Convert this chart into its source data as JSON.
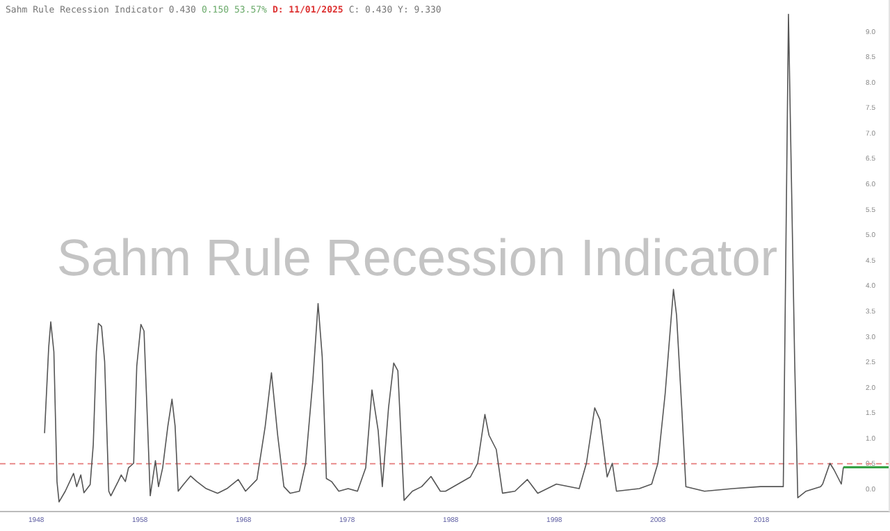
{
  "chart_data": {
    "type": "line",
    "title": "Sahm Rule Recession Indicator 0.430",
    "subtitle": "Sahm Rule Recession Indicator",
    "annotations": [
      "0.150 53.57%",
      "D: 11/01/2025",
      "C: 0.430 Y: 9.330"
    ],
    "x": [
      1948.8,
      1949.2,
      1949.4,
      1949.7,
      1950.0,
      1950.2,
      1950.8,
      1951.6,
      1951.9,
      1952.3,
      1952.6,
      1953.2,
      1953.5,
      1953.8,
      1954.0,
      1954.3,
      1954.6,
      1955.0,
      1955.2,
      1955.9,
      1956.2,
      1956.6,
      1956.9,
      1957.4,
      1957.7,
      1958.1,
      1958.4,
      1958.7,
      1959.0,
      1959.5,
      1959.8,
      1960.2,
      1960.7,
      1961.1,
      1961.4,
      1961.7,
      1962.2,
      1962.9,
      1963.5,
      1964.4,
      1965.5,
      1966.4,
      1967.5,
      1968.2,
      1969.3,
      1970.1,
      1970.7,
      1971.3,
      1971.9,
      1972.5,
      1973.4,
      1974.0,
      1974.7,
      1975.2,
      1975.6,
      1976.0,
      1976.5,
      1977.2,
      1978.1,
      1979.0,
      1979.8,
      1980.4,
      1981.0,
      1981.4,
      1982.0,
      1982.5,
      1982.9,
      1983.5,
      1984.3,
      1985.2,
      1986.1,
      1987.0,
      1987.5,
      1989.9,
      1990.6,
      1991.3,
      1991.7,
      1992.4,
      1993.0,
      1994.2,
      1995.4,
      1996.4,
      1998.2,
      2000.4,
      2001.1,
      2001.9,
      2002.4,
      2003.1,
      2003.6,
      2004.0,
      2006.2,
      2007.4,
      2008.0,
      2008.7,
      2009.5,
      2009.8,
      2010.3,
      2010.7,
      2012.5,
      2015.2,
      2017.9,
      2020.1,
      2020.6,
      2021.2,
      2021.5,
      2022.3,
      2023.7,
      2023.9,
      2024.6,
      2025.0,
      2025.7,
      2025.9
    ],
    "series": [
      {
        "color": "#555555",
        "values": [
          1.1,
          2.79,
          3.29,
          2.7,
          0.15,
          -0.25,
          -0.04,
          0.31,
          0.05,
          0.28,
          -0.07,
          0.09,
          0.87,
          2.7,
          3.26,
          3.2,
          2.51,
          -0.04,
          -0.13,
          0.15,
          0.28,
          0.15,
          0.42,
          0.51,
          2.42,
          3.24,
          3.11,
          1.51,
          -0.13,
          0.56,
          0.05,
          0.42,
          1.24,
          1.77,
          1.24,
          -0.04,
          0.09,
          0.26,
          0.15,
          0.01,
          -0.08,
          0.01,
          0.19,
          -0.04,
          0.19,
          1.24,
          2.29,
          1.06,
          0.05,
          -0.08,
          -0.04,
          0.51,
          2.15,
          3.65,
          2.6,
          0.21,
          0.15,
          -0.04,
          0.01,
          -0.04,
          0.42,
          1.95,
          1.15,
          0.05,
          1.6,
          2.48,
          2.33,
          -0.22,
          -0.04,
          0.05,
          0.25,
          -0.04,
          -0.04,
          0.24,
          0.51,
          1.47,
          1.06,
          0.78,
          -0.08,
          -0.04,
          0.19,
          -0.08,
          0.1,
          0.01,
          0.51,
          1.6,
          1.37,
          0.24,
          0.51,
          -0.04,
          0.01,
          0.1,
          0.51,
          1.88,
          3.93,
          3.42,
          1.6,
          0.05,
          -0.04,
          0.01,
          0.05,
          0.05,
          9.34,
          2.51,
          -0.17,
          -0.04,
          0.05,
          0.1,
          0.51,
          0.38,
          0.1,
          0.43
        ]
      },
      {
        "type": "line",
        "color": "#2a9d3a",
        "x": [
          2025.9,
          2030.4
        ],
        "values": [
          0.43,
          0.43
        ]
      }
    ],
    "xlim": [
      1944.5,
      2030.4
    ],
    "xticks": [
      1948,
      1958,
      1968,
      1978,
      1988,
      1998,
      2008,
      2018
    ],
    "ylim": [
      -0.44,
      9.62
    ],
    "yticks": [
      {
        "value": 0,
        "label": "0.0"
      },
      {
        "value": 0.5,
        "label": "0.5"
      },
      {
        "value": 1,
        "label": "1.0"
      },
      {
        "value": 1.5,
        "label": "1.5"
      },
      {
        "value": 2,
        "label": "2.0"
      },
      {
        "value": 2.5,
        "label": "2.5"
      },
      {
        "value": 3,
        "label": "3.0"
      },
      {
        "value": 3.5,
        "label": "3.5"
      },
      {
        "value": 4,
        "label": "4.0"
      },
      {
        "value": 4.5,
        "label": "4.5"
      },
      {
        "value": 5,
        "label": "5.0"
      },
      {
        "value": 5.5,
        "label": "5.5"
      },
      {
        "value": 6,
        "label": "6.0"
      },
      {
        "value": 6.5,
        "label": "6.5"
      },
      {
        "value": 7,
        "label": "7.0"
      },
      {
        "value": 7.5,
        "label": "7.5"
      },
      {
        "value": 8,
        "label": "8.0"
      },
      {
        "value": 8.5,
        "label": "8.5"
      },
      {
        "value": 9,
        "label": "9.0"
      }
    ],
    "ref_lines": [
      {
        "axis": "y",
        "value": 0.5,
        "color": "#e98a8a",
        "line_style": "dashed"
      }
    ],
    "grid": false,
    "marker": "none",
    "line_style": "solid"
  }
}
